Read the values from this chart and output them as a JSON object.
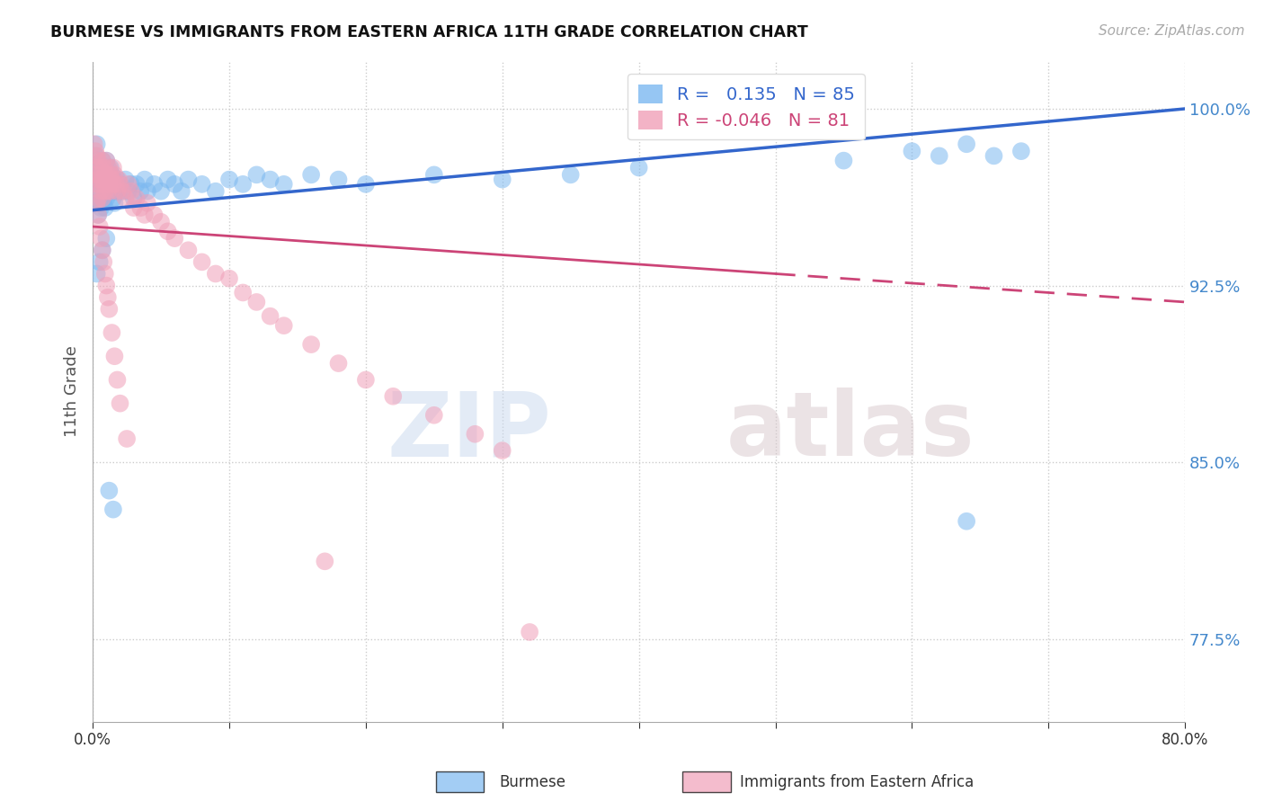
{
  "title": "BURMESE VS IMMIGRANTS FROM EASTERN AFRICA 11TH GRADE CORRELATION CHART",
  "source": "Source: ZipAtlas.com",
  "ylabel": "11th Grade",
  "xlim": [
    0.0,
    0.8
  ],
  "ylim": [
    0.74,
    1.02
  ],
  "xticks": [
    0.0,
    0.1,
    0.2,
    0.3,
    0.4,
    0.5,
    0.6,
    0.7,
    0.8
  ],
  "xticklabels": [
    "0.0%",
    "",
    "",
    "",
    "",
    "",
    "",
    "",
    "80.0%"
  ],
  "ytick_values": [
    0.775,
    0.85,
    0.925,
    1.0
  ],
  "ytick_labels": [
    "77.5%",
    "85.0%",
    "92.5%",
    "100.0%"
  ],
  "blue_R": 0.135,
  "blue_N": 85,
  "pink_R": -0.046,
  "pink_N": 81,
  "blue_color": "#7cb8f0",
  "pink_color": "#f0a0b8",
  "blue_line_color": "#3366cc",
  "pink_line_color": "#cc4477",
  "legend_label_blue": "Burmese",
  "legend_label_pink": "Immigrants from Eastern Africa",
  "watermark_zip": "ZIP",
  "watermark_atlas": "atlas",
  "blue_x": [
    0.001,
    0.002,
    0.002,
    0.003,
    0.003,
    0.003,
    0.004,
    0.004,
    0.004,
    0.005,
    0.005,
    0.005,
    0.006,
    0.006,
    0.006,
    0.007,
    0.007,
    0.007,
    0.008,
    0.008,
    0.008,
    0.009,
    0.009,
    0.009,
    0.01,
    0.01,
    0.01,
    0.011,
    0.011,
    0.012,
    0.012,
    0.013,
    0.013,
    0.014,
    0.014,
    0.015,
    0.015,
    0.016,
    0.016,
    0.017,
    0.018,
    0.019,
    0.02,
    0.022,
    0.024,
    0.026,
    0.028,
    0.03,
    0.032,
    0.035,
    0.038,
    0.04,
    0.045,
    0.05,
    0.055,
    0.06,
    0.065,
    0.07,
    0.08,
    0.09,
    0.1,
    0.11,
    0.12,
    0.13,
    0.14,
    0.16,
    0.18,
    0.2,
    0.25,
    0.3,
    0.35,
    0.4,
    0.55,
    0.6,
    0.62,
    0.64,
    0.66,
    0.68,
    0.003,
    0.005,
    0.007,
    0.01,
    0.012,
    0.015,
    0.64
  ],
  "blue_y": [
    0.975,
    0.98,
    0.96,
    0.972,
    0.965,
    0.985,
    0.97,
    0.978,
    0.955,
    0.975,
    0.968,
    0.96,
    0.972,
    0.965,
    0.958,
    0.978,
    0.97,
    0.962,
    0.975,
    0.968,
    0.96,
    0.972,
    0.965,
    0.958,
    0.978,
    0.97,
    0.962,
    0.975,
    0.968,
    0.972,
    0.965,
    0.975,
    0.968,
    0.972,
    0.965,
    0.97,
    0.962,
    0.968,
    0.96,
    0.965,
    0.97,
    0.965,
    0.968,
    0.965,
    0.97,
    0.965,
    0.968,
    0.962,
    0.968,
    0.965,
    0.97,
    0.965,
    0.968,
    0.965,
    0.97,
    0.968,
    0.965,
    0.97,
    0.968,
    0.965,
    0.97,
    0.968,
    0.972,
    0.97,
    0.968,
    0.972,
    0.97,
    0.968,
    0.972,
    0.97,
    0.972,
    0.975,
    0.978,
    0.982,
    0.98,
    0.985,
    0.98,
    0.982,
    0.93,
    0.935,
    0.94,
    0.945,
    0.838,
    0.83,
    0.825
  ],
  "pink_x": [
    0.001,
    0.002,
    0.002,
    0.003,
    0.003,
    0.003,
    0.004,
    0.004,
    0.004,
    0.005,
    0.005,
    0.006,
    0.006,
    0.007,
    0.007,
    0.007,
    0.008,
    0.008,
    0.009,
    0.009,
    0.01,
    0.01,
    0.011,
    0.011,
    0.012,
    0.012,
    0.013,
    0.013,
    0.014,
    0.015,
    0.015,
    0.016,
    0.017,
    0.018,
    0.019,
    0.02,
    0.022,
    0.024,
    0.026,
    0.028,
    0.03,
    0.032,
    0.035,
    0.038,
    0.04,
    0.045,
    0.05,
    0.055,
    0.06,
    0.07,
    0.08,
    0.09,
    0.1,
    0.11,
    0.12,
    0.13,
    0.14,
    0.16,
    0.18,
    0.2,
    0.22,
    0.25,
    0.28,
    0.3,
    0.003,
    0.004,
    0.005,
    0.006,
    0.007,
    0.008,
    0.009,
    0.01,
    0.011,
    0.012,
    0.014,
    0.016,
    0.018,
    0.02,
    0.025,
    0.17,
    0.32
  ],
  "pink_y": [
    0.985,
    0.982,
    0.972,
    0.98,
    0.975,
    0.968,
    0.978,
    0.97,
    0.962,
    0.975,
    0.968,
    0.972,
    0.965,
    0.978,
    0.97,
    0.962,
    0.975,
    0.968,
    0.972,
    0.965,
    0.978,
    0.97,
    0.972,
    0.965,
    0.975,
    0.968,
    0.972,
    0.965,
    0.97,
    0.975,
    0.968,
    0.972,
    0.968,
    0.965,
    0.97,
    0.968,
    0.965,
    0.962,
    0.968,
    0.965,
    0.958,
    0.962,
    0.958,
    0.955,
    0.96,
    0.955,
    0.952,
    0.948,
    0.945,
    0.94,
    0.935,
    0.93,
    0.928,
    0.922,
    0.918,
    0.912,
    0.908,
    0.9,
    0.892,
    0.885,
    0.878,
    0.87,
    0.862,
    0.855,
    0.96,
    0.955,
    0.95,
    0.945,
    0.94,
    0.935,
    0.93,
    0.925,
    0.92,
    0.915,
    0.905,
    0.895,
    0.885,
    0.875,
    0.86,
    0.808,
    0.778
  ]
}
